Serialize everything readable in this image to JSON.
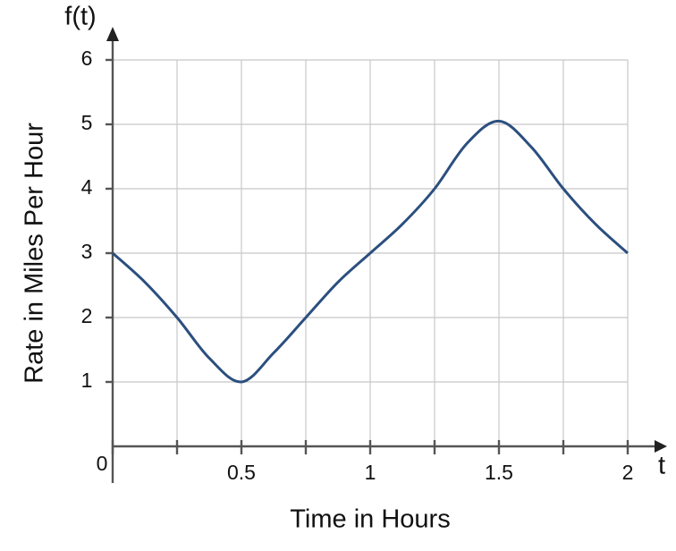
{
  "chart_data": {
    "type": "line",
    "y_axis_name": "f(t)",
    "x_axis_name": "t",
    "ylabel": "Rate in Miles Per Hour",
    "xlabel": "Time in Hours",
    "x": [
      0,
      0.125,
      0.25,
      0.375,
      0.5,
      0.625,
      0.75,
      0.875,
      1,
      1.125,
      1.25,
      1.375,
      1.5,
      1.625,
      1.75,
      1.875,
      2
    ],
    "values": [
      3,
      2.55,
      2,
      1.37,
      1,
      1.45,
      2,
      2.55,
      3,
      3.45,
      4,
      4.7,
      5.05,
      4.65,
      4,
      3.45,
      3
    ],
    "color": "#2b4f7e",
    "xlim": [
      0,
      2
    ],
    "ylim": [
      0,
      6
    ],
    "xticks": [
      0,
      0.5,
      1,
      1.5,
      2
    ],
    "xminor_ticks": [
      0.25,
      0.75,
      1.25,
      1.75
    ],
    "yticks": [
      1,
      2,
      3,
      4,
      5,
      6
    ],
    "grid": true
  }
}
